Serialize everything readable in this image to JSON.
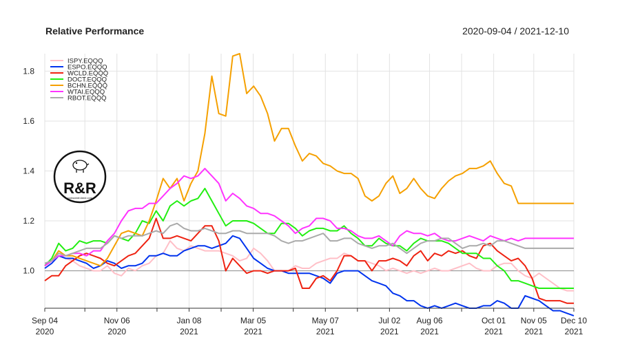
{
  "header": {
    "title": "Relative Performance",
    "date_range": "2020-09-04 / 2021-12-10"
  },
  "logo": {
    "text": "R&R",
    "subtext": "rocksandroland.com"
  },
  "chart_data": {
    "type": "line",
    "title": "Relative Performance",
    "xlabel": "",
    "ylabel": "",
    "x_start": "2020-09-04",
    "x_end": "2021-12-10",
    "xlim": [
      "2020-09-04",
      "2021-12-10"
    ],
    "ylim": [
      0.85,
      1.87
    ],
    "y_ticks": [
      1.0,
      1.2,
      1.4,
      1.6,
      1.8
    ],
    "y_tick_labels": [
      "1.0",
      "1.2",
      "1.4",
      "1.6",
      "1.8"
    ],
    "x_ticks": [
      {
        "date": "2020-09-04",
        "line1": "Sep 04",
        "line2": "2020"
      },
      {
        "date": "2020-11-06",
        "line1": "Nov 06",
        "line2": "2020"
      },
      {
        "date": "2021-01-08",
        "line1": "Jan 08",
        "line2": "2021"
      },
      {
        "date": "2021-03-05",
        "line1": "Mar 05",
        "line2": "2021"
      },
      {
        "date": "2021-05-07",
        "line1": "May 07",
        "line2": "2021"
      },
      {
        "date": "2021-07-02",
        "line1": "Jul 02",
        "line2": "2021"
      },
      {
        "date": "2021-08-06",
        "line1": "Aug 06",
        "line2": "2021"
      },
      {
        "date": "2021-10-01",
        "line1": "Oct 01",
        "line2": "2021"
      },
      {
        "date": "2021-11-05",
        "line1": "Nov 05",
        "line2": "2021"
      },
      {
        "date": "2021-12-10",
        "line1": "Dec 10",
        "line2": "2021"
      }
    ],
    "extra_gridline_dates": [
      "2020-10-09",
      "2020-12-11",
      "2021-02-05",
      "2021-04-09",
      "2021-06-04",
      "2021-09-03"
    ],
    "reference_line": 1.0,
    "grid": true,
    "legend_position": "top-left",
    "series": [
      {
        "name": "ISPY.EQQQ",
        "color": "#ffbfc7",
        "values": [
          1.02,
          1.04,
          1.06,
          1.05,
          1.04,
          1.02,
          1.01,
          1.0,
          1.0,
          1.02,
          0.99,
          0.98,
          1.01,
          1.0,
          1.02,
          1.03,
          1.06,
          1.07,
          1.12,
          1.09,
          1.08,
          1.1,
          1.09,
          1.08,
          1.08,
          1.08,
          1.07,
          1.06,
          1.04,
          1.05,
          1.09,
          1.07,
          1.04,
          1.0,
          1.0,
          1.0,
          1.02,
          1.01,
          1.01,
          1.03,
          1.04,
          1.05,
          1.05,
          1.07,
          1.06,
          1.04,
          1.04,
          1.03,
          1.02,
          1.0,
          1.01,
          1.0,
          0.99,
          1.0,
          0.99,
          1.0,
          1.01,
          1.0,
          1.0,
          1.01,
          1.02,
          1.03,
          1.01,
          1.0,
          1.0,
          1.02,
          1.03,
          1.03,
          1.0,
          0.98,
          0.97,
          0.99,
          0.97,
          0.95,
          0.93,
          0.92,
          0.92
        ]
      },
      {
        "name": "ESPO.EQQQ",
        "color": "#0033ee",
        "values": [
          1.01,
          1.03,
          1.06,
          1.05,
          1.05,
          1.04,
          1.03,
          1.01,
          1.02,
          1.04,
          1.03,
          1.01,
          1.02,
          1.02,
          1.03,
          1.06,
          1.06,
          1.07,
          1.06,
          1.06,
          1.08,
          1.09,
          1.1,
          1.1,
          1.09,
          1.1,
          1.11,
          1.14,
          1.13,
          1.09,
          1.05,
          1.03,
          1.01,
          1.0,
          1.0,
          0.99,
          0.99,
          0.99,
          0.99,
          0.98,
          0.97,
          0.95,
          0.99,
          1.0,
          1.0,
          1.0,
          0.98,
          0.96,
          0.95,
          0.94,
          0.91,
          0.9,
          0.88,
          0.88,
          0.86,
          0.85,
          0.86,
          0.85,
          0.86,
          0.87,
          0.86,
          0.85,
          0.85,
          0.86,
          0.86,
          0.88,
          0.87,
          0.85,
          0.85,
          0.9,
          0.89,
          0.88,
          0.86,
          0.84,
          0.84,
          0.83,
          0.82
        ]
      },
      {
        "name": "WCLD.EQQQ",
        "color": "#ee2211",
        "values": [
          0.96,
          0.98,
          0.98,
          1.02,
          1.04,
          1.06,
          1.07,
          1.06,
          1.05,
          1.03,
          1.02,
          1.04,
          1.06,
          1.07,
          1.1,
          1.13,
          1.21,
          1.13,
          1.13,
          1.14,
          1.13,
          1.12,
          1.15,
          1.18,
          1.18,
          1.12,
          1.0,
          1.05,
          1.02,
          0.99,
          1.0,
          1.0,
          0.99,
          1.0,
          1.0,
          1.0,
          1.01,
          0.93,
          0.93,
          0.97,
          0.98,
          0.96,
          1.0,
          1.06,
          1.06,
          1.04,
          1.04,
          1.0,
          1.04,
          1.04,
          1.05,
          1.04,
          1.02,
          1.06,
          1.08,
          1.04,
          1.07,
          1.06,
          1.08,
          1.07,
          1.08,
          1.06,
          1.05,
          1.1,
          1.11,
          1.08,
          1.06,
          1.04,
          1.05,
          1.02,
          0.97,
          0.89,
          0.88,
          0.88,
          0.88,
          0.87,
          0.87
        ]
      },
      {
        "name": "DOCT.EQQQ",
        "color": "#22ee11",
        "values": [
          1.02,
          1.05,
          1.11,
          1.08,
          1.09,
          1.12,
          1.11,
          1.12,
          1.12,
          1.11,
          1.14,
          1.13,
          1.12,
          1.15,
          1.2,
          1.19,
          1.24,
          1.2,
          1.26,
          1.28,
          1.26,
          1.28,
          1.29,
          1.33,
          1.28,
          1.23,
          1.18,
          1.2,
          1.2,
          1.2,
          1.19,
          1.17,
          1.15,
          1.15,
          1.19,
          1.19,
          1.17,
          1.14,
          1.16,
          1.17,
          1.17,
          1.16,
          1.16,
          1.18,
          1.15,
          1.13,
          1.1,
          1.1,
          1.13,
          1.11,
          1.1,
          1.1,
          1.08,
          1.11,
          1.13,
          1.12,
          1.12,
          1.12,
          1.11,
          1.09,
          1.07,
          1.07,
          1.07,
          1.05,
          1.05,
          1.02,
          1.0,
          0.96,
          0.96,
          0.95,
          0.94,
          0.93,
          0.93,
          0.93,
          0.93,
          0.93,
          0.93
        ]
      },
      {
        "name": "BCHN.EQQQ",
        "color": "#f5a000",
        "values": [
          1.02,
          1.04,
          1.08,
          1.06,
          1.06,
          1.05,
          1.04,
          1.03,
          1.02,
          1.05,
          1.1,
          1.15,
          1.16,
          1.15,
          1.14,
          1.2,
          1.28,
          1.37,
          1.33,
          1.37,
          1.28,
          1.35,
          1.4,
          1.55,
          1.78,
          1.63,
          1.62,
          1.86,
          1.87,
          1.71,
          1.74,
          1.7,
          1.63,
          1.52,
          1.57,
          1.57,
          1.5,
          1.44,
          1.47,
          1.46,
          1.43,
          1.42,
          1.4,
          1.39,
          1.39,
          1.37,
          1.3,
          1.28,
          1.3,
          1.35,
          1.38,
          1.31,
          1.33,
          1.37,
          1.33,
          1.3,
          1.29,
          1.33,
          1.36,
          1.38,
          1.39,
          1.41,
          1.41,
          1.42,
          1.44,
          1.39,
          1.35,
          1.34,
          1.27,
          1.27,
          1.27,
          1.27,
          1.27,
          1.27,
          1.27,
          1.27,
          1.27
        ]
      },
      {
        "name": "WTAI.EQQQ",
        "color": "#ff33ff",
        "values": [
          1.02,
          1.04,
          1.06,
          1.06,
          1.07,
          1.07,
          1.06,
          1.08,
          1.08,
          1.12,
          1.15,
          1.2,
          1.24,
          1.25,
          1.25,
          1.27,
          1.27,
          1.3,
          1.33,
          1.35,
          1.38,
          1.37,
          1.38,
          1.41,
          1.38,
          1.35,
          1.28,
          1.31,
          1.29,
          1.26,
          1.25,
          1.23,
          1.23,
          1.22,
          1.2,
          1.18,
          1.15,
          1.17,
          1.18,
          1.21,
          1.21,
          1.2,
          1.17,
          1.17,
          1.16,
          1.14,
          1.13,
          1.13,
          1.14,
          1.12,
          1.1,
          1.14,
          1.16,
          1.15,
          1.15,
          1.14,
          1.15,
          1.13,
          1.12,
          1.12,
          1.13,
          1.14,
          1.13,
          1.12,
          1.14,
          1.13,
          1.12,
          1.13,
          1.12,
          1.13,
          1.13,
          1.13,
          1.13,
          1.13,
          1.13,
          1.13,
          1.13
        ]
      },
      {
        "name": "RBOT.EQQQ",
        "color": "#aaaaaa",
        "values": [
          1.03,
          1.04,
          1.07,
          1.06,
          1.07,
          1.08,
          1.09,
          1.09,
          1.09,
          1.11,
          1.14,
          1.13,
          1.14,
          1.14,
          1.14,
          1.15,
          1.16,
          1.15,
          1.18,
          1.19,
          1.17,
          1.16,
          1.16,
          1.17,
          1.16,
          1.15,
          1.15,
          1.16,
          1.16,
          1.15,
          1.15,
          1.15,
          1.15,
          1.14,
          1.12,
          1.11,
          1.12,
          1.12,
          1.13,
          1.14,
          1.15,
          1.12,
          1.12,
          1.13,
          1.13,
          1.11,
          1.1,
          1.09,
          1.1,
          1.1,
          1.11,
          1.09,
          1.07,
          1.09,
          1.11,
          1.12,
          1.12,
          1.13,
          1.13,
          1.11,
          1.09,
          1.1,
          1.1,
          1.11,
          1.1,
          1.12,
          1.12,
          1.11,
          1.1,
          1.09,
          1.09,
          1.09,
          1.09,
          1.09,
          1.09,
          1.09,
          1.09
        ]
      }
    ]
  }
}
